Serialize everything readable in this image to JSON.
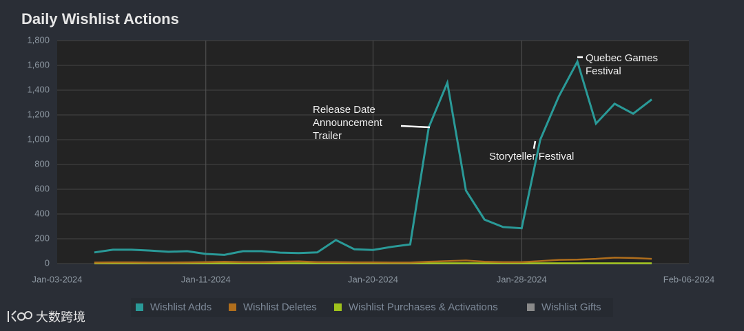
{
  "chart_data": {
    "type": "line",
    "title": "Daily Wishlist Actions",
    "x": [
      "2024-01-05",
      "2024-01-06",
      "2024-01-07",
      "2024-01-08",
      "2024-01-09",
      "2024-01-10",
      "2024-01-11",
      "2024-01-12",
      "2024-01-13",
      "2024-01-14",
      "2024-01-15",
      "2024-01-16",
      "2024-01-17",
      "2024-01-18",
      "2024-01-19",
      "2024-01-20",
      "2024-01-21",
      "2024-01-22",
      "2024-01-23",
      "2024-01-24",
      "2024-01-25",
      "2024-01-26",
      "2024-01-27",
      "2024-01-28",
      "2024-01-29",
      "2024-01-30",
      "2024-01-31",
      "2024-02-01",
      "2024-02-02",
      "2024-02-03",
      "2024-02-04"
    ],
    "series": [
      {
        "name": "Wishlist Adds",
        "color": "#2a9a98",
        "values": [
          90,
          112,
          112,
          105,
          95,
          100,
          78,
          70,
          100,
          100,
          88,
          85,
          90,
          190,
          115,
          110,
          135,
          155,
          1100,
          1460,
          590,
          355,
          295,
          285,
          1000,
          1350,
          1630,
          1130,
          1290,
          1210,
          1325
        ]
      },
      {
        "name": "Wishlist Deletes",
        "color": "#b06e1c",
        "values": [
          8,
          10,
          10,
          8,
          8,
          10,
          12,
          15,
          12,
          12,
          15,
          18,
          12,
          12,
          10,
          10,
          8,
          8,
          15,
          20,
          25,
          15,
          12,
          12,
          20,
          30,
          32,
          38,
          48,
          45,
          38
        ]
      },
      {
        "name": "Wishlist Purchases & Activations",
        "color": "#9fc21c",
        "values": [
          3,
          3,
          3,
          3,
          3,
          3,
          3,
          3,
          3,
          3,
          3,
          3,
          3,
          3,
          3,
          3,
          3,
          3,
          3,
          3,
          3,
          3,
          3,
          3,
          3,
          3,
          3,
          3,
          3,
          3,
          3
        ]
      },
      {
        "name": "Wishlist Gifts",
        "color": "#8a8a8a",
        "values": [
          1,
          1,
          1,
          1,
          1,
          1,
          1,
          1,
          1,
          1,
          1,
          1,
          1,
          1,
          1,
          1,
          1,
          1,
          1,
          1,
          1,
          1,
          1,
          1,
          1,
          1,
          1,
          1,
          1,
          1,
          1
        ]
      }
    ],
    "xlim": [
      "2024-01-03",
      "2024-02-06"
    ],
    "xticks": [
      {
        "value": "2024-01-03",
        "label": "Jan-03-2024"
      },
      {
        "value": "2024-01-11",
        "label": "Jan-11-2024"
      },
      {
        "value": "2024-01-20",
        "label": "Jan-20-2024"
      },
      {
        "value": "2024-01-28",
        "label": "Jan-28-2024"
      },
      {
        "value": "2024-02-06",
        "label": "Feb-06-2024"
      }
    ],
    "ylim": [
      0,
      1800
    ],
    "yticks": [
      0,
      {
        "value": 200,
        "label": "200"
      },
      400,
      600,
      800,
      {
        "value": 1000,
        "label": "1,000"
      },
      {
        "value": 1200,
        "label": "1,200"
      },
      {
        "value": 1400,
        "label": "1,400"
      },
      {
        "value": 1600,
        "label": "1,600"
      },
      {
        "value": 1800,
        "label": "1,800"
      }
    ],
    "grid": true,
    "legend": "bottom",
    "annotations": [
      {
        "text": [
          "Release Date",
          "Announcement",
          "Trailer"
        ]
      },
      {
        "text": [
          "Storyteller Festival"
        ]
      },
      {
        "text": [
          "Quebec Games",
          "Festival"
        ]
      }
    ]
  },
  "watermark": "大数跨境"
}
